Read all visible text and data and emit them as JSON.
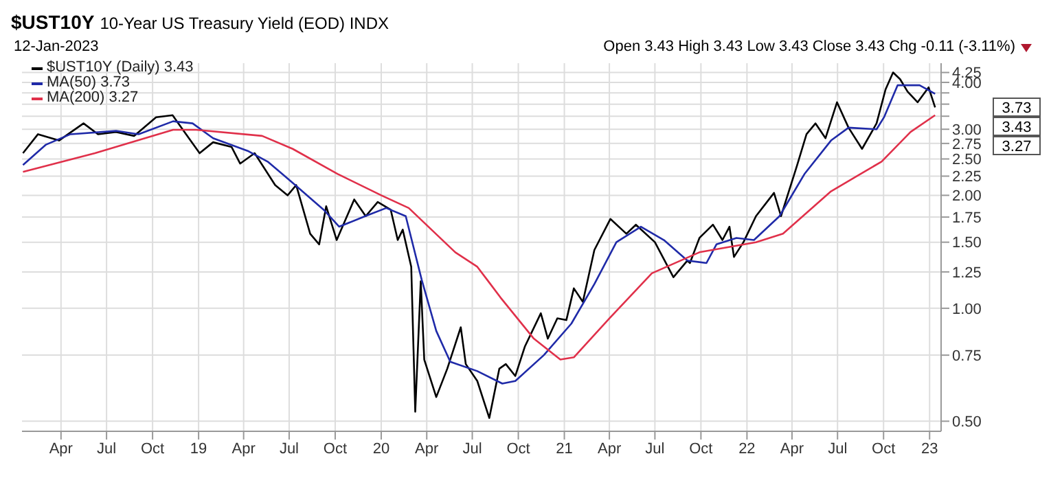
{
  "chart_data": {
    "type": "line",
    "title": "$UST10Y",
    "subtitle": "10-Year US Treasury Yield (EOD) INDX",
    "annotations": [
      "12-Jan-2023",
      "Open 3.43 High 3.43 Low 3.43 Close 3.43 Chg -0.11 (-3.11%)",
      "3.73",
      "3.43",
      "3.27"
    ],
    "series": [
      {
        "name": "$UST10Y (Daily) 3.43",
        "color": "#000000",
        "x": [
          "2018-01-15",
          "2018-02-14",
          "2018-03-28",
          "2018-05-16",
          "2018-06-14",
          "2018-07-20",
          "2018-08-25",
          "2018-10-08",
          "2018-11-10",
          "2018-12-07",
          "2019-01-03",
          "2019-01-30",
          "2019-03-08",
          "2019-03-25",
          "2019-04-23",
          "2019-06-03",
          "2019-06-28",
          "2019-07-15",
          "2019-08-12",
          "2019-08-30",
          "2019-09-13",
          "2019-10-04",
          "2019-11-08",
          "2019-12-01",
          "2019-12-25",
          "2020-01-20",
          "2020-02-03",
          "2020-02-13",
          "2020-03-01",
          "2020-03-09",
          "2020-03-20",
          "2020-03-27",
          "2020-04-20",
          "2020-05-12",
          "2020-06-08",
          "2020-06-18",
          "2020-07-11",
          "2020-08-04",
          "2020-08-24",
          "2020-09-06",
          "2020-09-25",
          "2020-10-14",
          "2020-11-15",
          "2020-11-29",
          "2020-12-18",
          "2021-01-05",
          "2021-01-20",
          "2021-02-07",
          "2021-03-02",
          "2021-04-03",
          "2021-05-05",
          "2021-05-24",
          "2021-07-01",
          "2021-08-07",
          "2021-09-04",
          "2021-09-09",
          "2021-09-28",
          "2021-10-25",
          "2021-11-13",
          "2021-11-27",
          "2021-12-06",
          "2021-12-25",
          "2022-01-19",
          "2022-02-24",
          "2022-03-10",
          "2022-04-11",
          "2022-04-30",
          "2022-05-18",
          "2022-06-07",
          "2022-06-30",
          "2022-07-23",
          "2022-08-19",
          "2022-09-17",
          "2022-10-05",
          "2022-10-20",
          "2022-11-03",
          "2022-11-18",
          "2022-12-08",
          "2022-12-30",
          "2023-01-12"
        ],
        "values": [
          2.59,
          2.91,
          2.8,
          3.11,
          2.91,
          2.95,
          2.88,
          3.23,
          3.27,
          2.91,
          2.59,
          2.77,
          2.69,
          2.43,
          2.59,
          2.13,
          2.0,
          2.13,
          1.58,
          1.48,
          1.87,
          1.52,
          1.95,
          1.76,
          1.92,
          1.83,
          1.52,
          1.62,
          1.29,
          0.53,
          1.18,
          0.73,
          0.58,
          0.69,
          0.89,
          0.71,
          0.64,
          0.51,
          0.69,
          0.71,
          0.66,
          0.79,
          0.97,
          0.83,
          0.94,
          0.93,
          1.13,
          1.04,
          1.43,
          1.73,
          1.58,
          1.67,
          1.5,
          1.21,
          1.34,
          1.32,
          1.54,
          1.67,
          1.52,
          1.65,
          1.37,
          1.5,
          1.76,
          2.03,
          1.76,
          2.4,
          2.91,
          3.11,
          2.84,
          3.54,
          3.03,
          2.66,
          3.11,
          3.83,
          4.25,
          4.08,
          3.78,
          3.54,
          3.88,
          3.43
        ]
      },
      {
        "name": "MA(50) 3.73",
        "color": "#1f2aa8",
        "x": [
          "2018-01-15",
          "2018-03-02",
          "2018-04-20",
          "2018-07-20",
          "2018-09-03",
          "2018-11-11",
          "2018-12-20",
          "2019-01-30",
          "2019-04-11",
          "2019-05-19",
          "2019-07-08",
          "2019-09-08",
          "2019-10-09",
          "2019-11-30",
          "2020-01-11",
          "2020-02-19",
          "2020-03-22",
          "2020-04-20",
          "2020-05-18",
          "2020-07-11",
          "2020-08-30",
          "2020-09-25",
          "2020-11-21",
          "2021-01-15",
          "2021-03-02",
          "2021-04-15",
          "2021-06-03",
          "2021-07-19",
          "2021-09-04",
          "2021-10-12",
          "2021-11-01",
          "2021-12-11",
          "2022-01-15",
          "2022-03-07",
          "2022-04-26",
          "2022-06-18",
          "2022-07-23",
          "2022-09-17",
          "2022-10-02",
          "2022-10-29",
          "2022-12-12",
          "2023-01-12"
        ],
        "values": [
          2.41,
          2.73,
          2.91,
          2.97,
          2.91,
          3.15,
          3.11,
          2.84,
          2.62,
          2.46,
          2.16,
          1.83,
          1.65,
          1.76,
          1.85,
          1.76,
          1.19,
          0.87,
          0.72,
          0.68,
          0.63,
          0.64,
          0.75,
          0.91,
          1.16,
          1.5,
          1.65,
          1.52,
          1.34,
          1.32,
          1.48,
          1.54,
          1.52,
          1.76,
          2.28,
          2.8,
          3.03,
          3.0,
          3.23,
          3.93,
          3.93,
          3.73
        ]
      },
      {
        "name": "MA(200) 3.27",
        "color": "#e0304a",
        "x": [
          "2018-01-15",
          "2018-06-08",
          "2018-11-11",
          "2018-12-27",
          "2019-05-08",
          "2019-07-08",
          "2019-10-06",
          "2020-01-01",
          "2020-02-25",
          "2020-05-28",
          "2020-07-11",
          "2020-07-31",
          "2020-08-26",
          "2020-11-01",
          "2020-12-24",
          "2021-01-20",
          "2021-04-01",
          "2021-06-25",
          "2021-09-28",
          "2022-01-19",
          "2022-03-14",
          "2022-06-18",
          "2022-09-27",
          "2022-11-24",
          "2023-01-12"
        ],
        "values": [
          2.31,
          2.59,
          2.99,
          2.99,
          2.88,
          2.66,
          2.28,
          2.0,
          1.85,
          1.41,
          1.29,
          1.19,
          1.07,
          0.83,
          0.73,
          0.74,
          0.94,
          1.24,
          1.41,
          1.5,
          1.58,
          2.05,
          2.46,
          2.95,
          3.27
        ]
      }
    ],
    "xlim": [
      "2018-01-13",
      "2023-01-24"
    ],
    "xticks": [
      {
        "value": "2018-04",
        "label": "Apr"
      },
      {
        "value": "2018-07",
        "label": "Jul"
      },
      {
        "value": "2018-10",
        "label": "Oct"
      },
      {
        "value": "2019",
        "label": "19"
      },
      {
        "value": "2019-04",
        "label": "Apr"
      },
      {
        "value": "2019-07",
        "label": "Jul"
      },
      {
        "value": "2019-10",
        "label": "Oct"
      },
      {
        "value": "2020",
        "label": "20"
      },
      {
        "value": "2020-04",
        "label": "Apr"
      },
      {
        "value": "2020-07",
        "label": "Jul"
      },
      {
        "value": "2020-10",
        "label": "Oct"
      },
      {
        "value": "2021",
        "label": "21"
      },
      {
        "value": "2021-04",
        "label": "Apr"
      },
      {
        "value": "2021-07",
        "label": "Jul"
      },
      {
        "value": "2021-10",
        "label": "Oct"
      },
      {
        "value": "2022",
        "label": "22"
      },
      {
        "value": "2022-04",
        "label": "Apr"
      },
      {
        "value": "2022-07",
        "label": "Jul"
      },
      {
        "value": "2022-10",
        "label": "Oct"
      },
      {
        "value": "2023",
        "label": "23"
      }
    ],
    "ylim": [
      0.47,
      4.5
    ],
    "yticks": [
      {
        "value": 0.5,
        "label": "0.50"
      },
      {
        "value": 0.75,
        "label": "0.75"
      },
      {
        "value": 1,
        "label": "1.00"
      },
      {
        "value": 1.25,
        "label": "1.25"
      },
      {
        "value": 1.5,
        "label": "1.50"
      },
      {
        "value": 1.75,
        "label": "1.75"
      },
      {
        "value": 2,
        "label": "2.00"
      },
      {
        "value": 2.25,
        "label": "2.25"
      },
      {
        "value": 2.5,
        "label": "2.50"
      },
      {
        "value": 2.75,
        "label": "2.75"
      },
      {
        "value": 3,
        "label": "3.00"
      },
      {
        "value": 3.25,
        "label": null
      },
      {
        "value": 3.5,
        "label": null
      },
      {
        "value": 3.75,
        "label": null
      },
      {
        "value": 4,
        "label": "4.00"
      },
      {
        "value": 4.25,
        "label": "4.25"
      }
    ],
    "log": true,
    "grid": true,
    "legend": "top left",
    "marker": "none",
    "line_style": "solid"
  }
}
